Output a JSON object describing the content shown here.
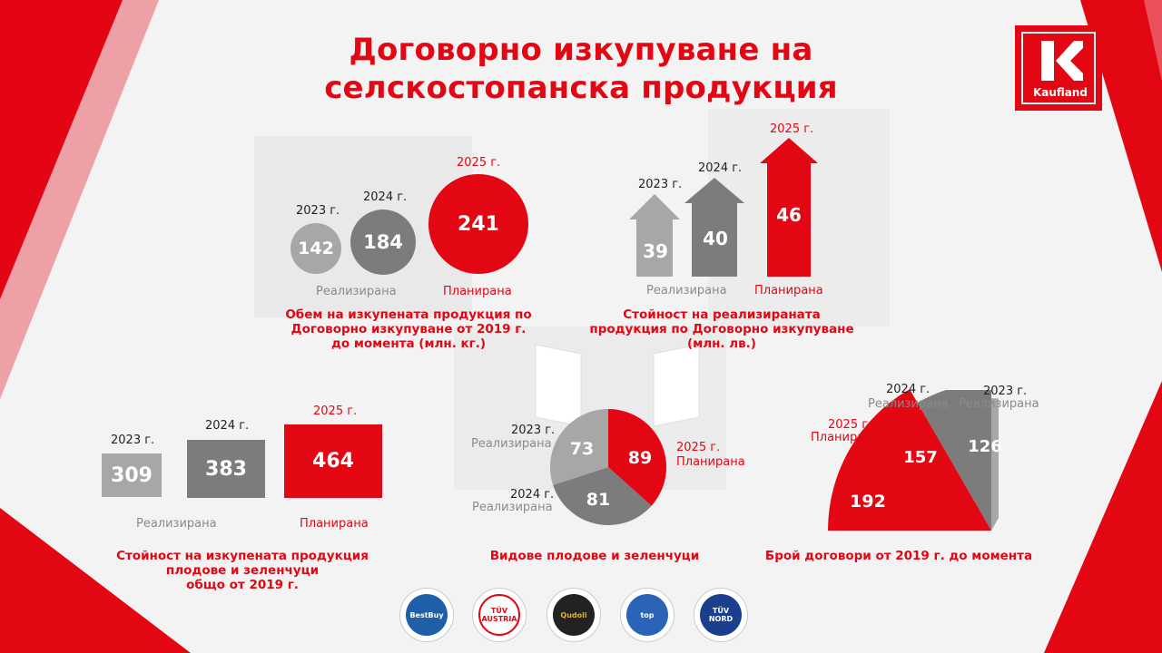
{
  "title": {
    "line1": "Договорно изкупуване на",
    "line2": "селскостопанска продукция"
  },
  "logo": {
    "text": "Kaufland",
    "icon": "kaufland-k-icon"
  },
  "colors": {
    "red": "#e30613",
    "gray_light": "#a7a7a7",
    "gray_mid": "#7c7c7c",
    "white": "#ffffff"
  },
  "chart_data": [
    {
      "type": "bubble",
      "categories": [
        "2023 г.",
        "2024 г.",
        "2025 г."
      ],
      "values": [
        142,
        184,
        241
      ],
      "status": [
        "Реализирана",
        "Реализирана",
        "Планирана"
      ],
      "title": "Обем на изкупената продукция по Договорно изкупуване от 2019 г. до момента (млн. кг.)"
    },
    {
      "type": "bar",
      "categories": [
        "2023 г.",
        "2024 г.",
        "2025 г."
      ],
      "values": [
        39,
        40,
        46
      ],
      "status": [
        "Реализирана",
        "Реализирана",
        "Планирана"
      ],
      "title": "Стойност на реализираната продукция по Договорно изкупуване (млн. лв.)"
    },
    {
      "type": "bar",
      "categories": [
        "2023 г.",
        "2024 г.",
        "2025 г."
      ],
      "values": [
        309,
        383,
        464
      ],
      "status": [
        "Реализирана",
        "Реализирана",
        "Планирана"
      ],
      "title": "Стойност на изкупената продукция плодове и зеленчуци общо от 2019 г."
    },
    {
      "type": "pie",
      "categories": [
        "2023 г.",
        "2024 г.",
        "2025 г."
      ],
      "values": [
        73,
        81,
        89
      ],
      "status": [
        "Реализирана",
        "Реализирана",
        "Планирана"
      ],
      "title": "Видове плодове и зеленчуци"
    },
    {
      "type": "pie",
      "categories": [
        "2023 г.",
        "2024 г.",
        "2025 г."
      ],
      "values": [
        126,
        157,
        192
      ],
      "status": [
        "Реализирана",
        "Реализирана",
        "Планирана"
      ],
      "title": "Брой договори от 2019 г. до момента"
    }
  ],
  "captions": {
    "volume": [
      "Обем на изкупената продукция по",
      "Договорно изкупуване от 2019 г.",
      "до момента (млн. кг.)"
    ],
    "value": [
      "Стойност на реализираната",
      "продукция по Договорно изкупуване",
      "(млн. лв.)"
    ],
    "fv_value": [
      "Стойност на изкупената продукция",
      "плодове и зеленчуци",
      "общо от 2019 г."
    ],
    "kinds": [
      "Видове плодове и зеленчуци"
    ],
    "contracts": [
      "Брой договори от 2019 г. до момента"
    ]
  },
  "badges": [
    {
      "name": "bestbuy-award-badge",
      "text": "BestBuy",
      "color": "#1f5fa8"
    },
    {
      "name": "tuv-austria-badge",
      "text": "TÜV AUSTRIA",
      "color": "#e30613"
    },
    {
      "name": "quality-label-badge",
      "text": "Qudoli",
      "color": "#b8860b"
    },
    {
      "name": "top-employer-badge",
      "text": "top",
      "color": "#2a63b8"
    },
    {
      "name": "tuv-nord-badge",
      "text": "TÜV NORD",
      "color": "#1b3f8c"
    }
  ]
}
